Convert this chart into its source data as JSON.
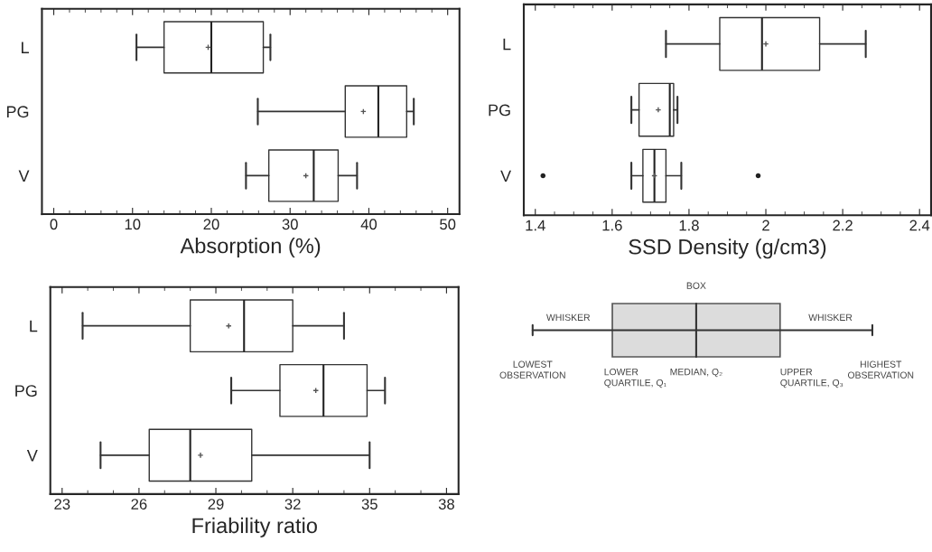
{
  "chart_data": [
    {
      "type": "box",
      "orientation": "horizontal",
      "xlabel": "Absorption (%)",
      "categories": [
        "L",
        "PG",
        "V"
      ],
      "boxes": [
        {
          "low": 10.5,
          "q1": 14.0,
          "median": 20.0,
          "q3": 26.6,
          "high": 27.5,
          "mean": 19.6
        },
        {
          "low": 25.9,
          "q1": 37.0,
          "median": 41.2,
          "q3": 44.8,
          "high": 45.7,
          "mean": 39.3
        },
        {
          "low": 24.4,
          "q1": 27.3,
          "median": 33.0,
          "q3": 36.1,
          "high": 38.5,
          "mean": 32.0
        }
      ],
      "xlim": [
        -1.5,
        51.5
      ],
      "xticks": [
        0,
        {
          "value": 2,
          "label": null
        },
        {
          "value": 4,
          "label": null
        },
        {
          "value": 6,
          "label": null
        },
        {
          "value": 8,
          "label": null
        },
        10,
        {
          "value": 12,
          "label": null
        },
        {
          "value": 14,
          "label": null
        },
        {
          "value": 16,
          "label": null
        },
        {
          "value": 18,
          "label": null
        },
        20,
        {
          "value": 22,
          "label": null
        },
        {
          "value": 24,
          "label": null
        },
        {
          "value": 26,
          "label": null
        },
        {
          "value": 28,
          "label": null
        },
        30,
        {
          "value": 32,
          "label": null
        },
        {
          "value": 34,
          "label": null
        },
        {
          "value": 36,
          "label": null
        },
        {
          "value": 38,
          "label": null
        },
        40,
        {
          "value": 42,
          "label": null
        },
        {
          "value": 44,
          "label": null
        },
        {
          "value": 46,
          "label": null
        },
        {
          "value": 48,
          "label": null
        },
        50
      ],
      "grid": false
    },
    {
      "type": "box",
      "orientation": "horizontal",
      "xlabel": "SSD Density (g/cm3)",
      "categories": [
        "L",
        "PG",
        "V"
      ],
      "boxes": [
        {
          "low": 1.74,
          "q1": 1.88,
          "median": 1.99,
          "q3": 2.14,
          "high": 2.26,
          "mean": 2.0
        },
        {
          "low": 1.65,
          "q1": 1.67,
          "median": 1.75,
          "q3": 1.76,
          "high": 1.77,
          "mean": 1.72
        },
        {
          "low": 1.65,
          "q1": 1.68,
          "median": 1.71,
          "q3": 1.74,
          "high": 1.78,
          "mean": 1.71,
          "outliers": [
            1.42,
            1.98
          ]
        }
      ],
      "xlim": [
        1.37,
        2.43
      ],
      "xticks": [
        1.4,
        {
          "value": 1.45,
          "label": null
        },
        {
          "value": 1.5,
          "label": null
        },
        {
          "value": 1.55,
          "label": null
        },
        1.6,
        {
          "value": 1.65,
          "label": null
        },
        {
          "value": 1.7,
          "label": null
        },
        {
          "value": 1.75,
          "label": null
        },
        1.8,
        {
          "value": 1.85,
          "label": null
        },
        {
          "value": 1.9,
          "label": null
        },
        {
          "value": 1.95,
          "label": null
        },
        2,
        {
          "value": 2.05,
          "label": null
        },
        {
          "value": 2.1,
          "label": null
        },
        {
          "value": 2.15,
          "label": null
        },
        2.2,
        {
          "value": 2.25,
          "label": null
        },
        {
          "value": 2.3,
          "label": null
        },
        {
          "value": 2.35,
          "label": null
        },
        2.4
      ],
      "grid": false
    },
    {
      "type": "box",
      "orientation": "horizontal",
      "xlabel": "Friability ratio",
      "categories": [
        "L",
        "PG",
        "V"
      ],
      "boxes": [
        {
          "low": 23.8,
          "q1": 28.0,
          "median": 30.1,
          "q3": 32.0,
          "high": 34.0,
          "mean": 29.5
        },
        {
          "low": 29.6,
          "q1": 31.5,
          "median": 33.2,
          "q3": 34.9,
          "high": 35.6,
          "mean": 32.9
        },
        {
          "low": 24.5,
          "q1": 26.4,
          "median": 28.0,
          "q3": 30.4,
          "high": 35.0,
          "mean": 28.4
        }
      ],
      "xlim": [
        22.54,
        38.47
      ],
      "xticks": [
        23,
        {
          "value": 24,
          "label": null
        },
        {
          "value": 25,
          "label": null
        },
        26,
        {
          "value": 27,
          "label": null
        },
        {
          "value": 28,
          "label": null
        },
        29,
        {
          "value": 30,
          "label": null
        },
        {
          "value": 31,
          "label": null
        },
        32,
        {
          "value": 33,
          "label": null
        },
        {
          "value": 34,
          "label": null
        },
        35,
        {
          "value": 36,
          "label": null
        },
        {
          "value": 37,
          "label": null
        },
        38
      ],
      "grid": false
    },
    {
      "type": "other",
      "annotations": [
        "BOX",
        "WHISKER",
        "WHISKER",
        "LOWEST\nOBSERVATION",
        "LOWER\nQUARTILE, Q₁",
        "MEDIAN, Q₂",
        "UPPER\nQUARTILE, Q₃",
        "HIGHEST\nOBSERVATION"
      ]
    }
  ]
}
